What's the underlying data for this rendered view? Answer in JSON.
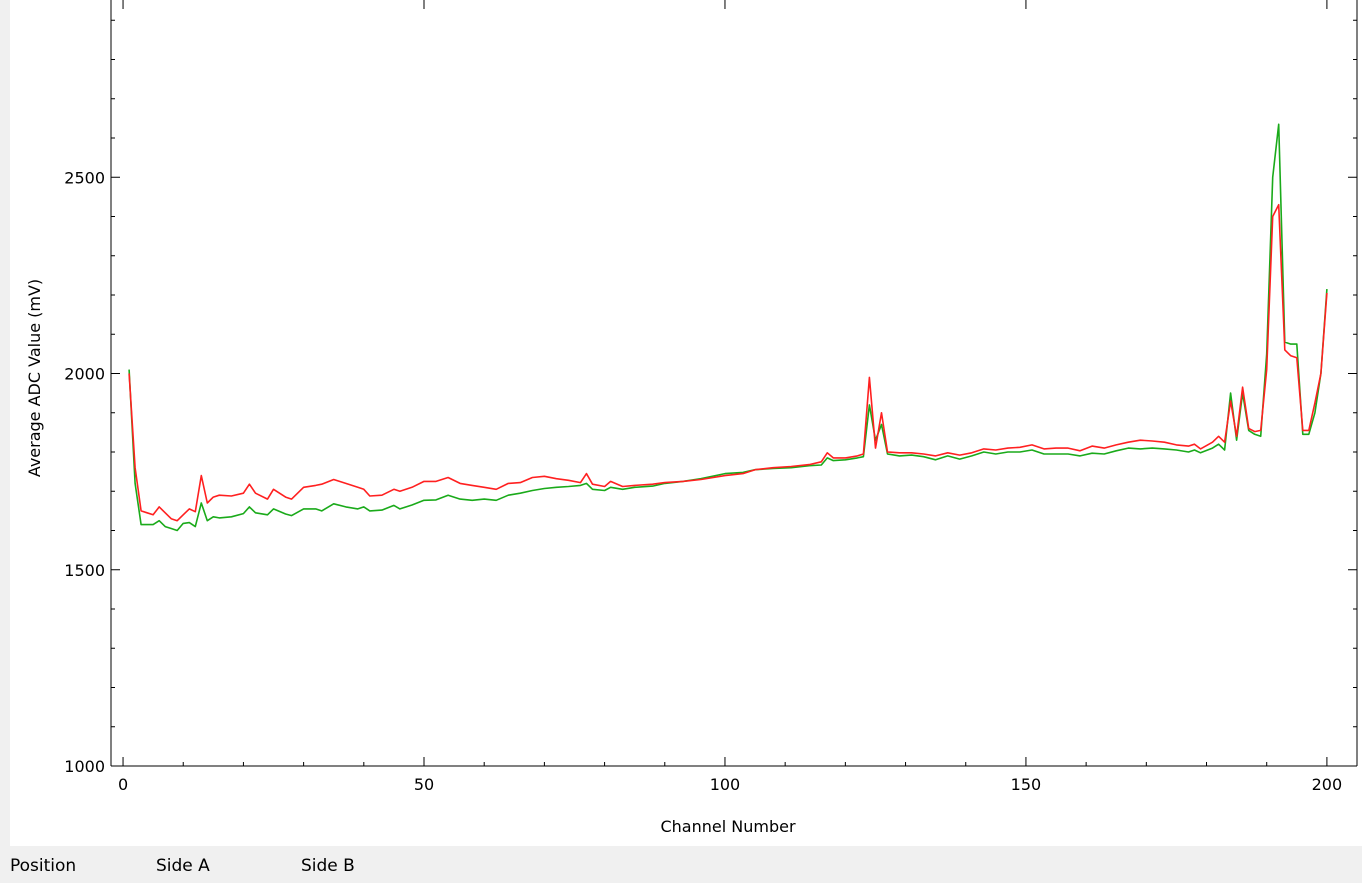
{
  "chart_data": {
    "type": "line",
    "title": "",
    "xlabel": "Channel Number",
    "ylabel": "Average ADC Value (mV)",
    "xlim": [
      -2,
      205
    ],
    "ylim": [
      1000,
      3000
    ],
    "x_ticks": [
      0,
      50,
      100,
      150,
      200
    ],
    "x_tick_labels": [
      "0",
      "50",
      "100",
      "150",
      "200"
    ],
    "y_ticks": [
      1000,
      1500,
      2000,
      2500
    ],
    "y_tick_labels": [
      "1000",
      "1500",
      "2000",
      "2500"
    ],
    "grid": false,
    "legend": "none",
    "series": [
      {
        "color": "#1aaa1a",
        "points": [
          [
            1,
            2010
          ],
          [
            2,
            1720
          ],
          [
            3,
            1615
          ],
          [
            4,
            1615
          ],
          [
            5,
            1615
          ],
          [
            6,
            1625
          ],
          [
            7,
            1610
          ],
          [
            8,
            1605
          ],
          [
            9,
            1600
          ],
          [
            10,
            1618
          ],
          [
            11,
            1620
          ],
          [
            12,
            1610
          ],
          [
            13,
            1670
          ],
          [
            14,
            1625
          ],
          [
            15,
            1635
          ],
          [
            16,
            1632
          ],
          [
            18,
            1635
          ],
          [
            20,
            1643
          ],
          [
            21,
            1660
          ],
          [
            22,
            1645
          ],
          [
            24,
            1640
          ],
          [
            25,
            1655
          ],
          [
            27,
            1642
          ],
          [
            28,
            1638
          ],
          [
            30,
            1655
          ],
          [
            32,
            1655
          ],
          [
            33,
            1650
          ],
          [
            35,
            1668
          ],
          [
            37,
            1660
          ],
          [
            39,
            1655
          ],
          [
            40,
            1660
          ],
          [
            41,
            1650
          ],
          [
            43,
            1652
          ],
          [
            45,
            1664
          ],
          [
            46,
            1655
          ],
          [
            48,
            1665
          ],
          [
            50,
            1677
          ],
          [
            52,
            1678
          ],
          [
            54,
            1690
          ],
          [
            56,
            1680
          ],
          [
            58,
            1677
          ],
          [
            60,
            1680
          ],
          [
            62,
            1677
          ],
          [
            64,
            1690
          ],
          [
            66,
            1695
          ],
          [
            68,
            1702
          ],
          [
            70,
            1707
          ],
          [
            72,
            1710
          ],
          [
            74,
            1712
          ],
          [
            76,
            1715
          ],
          [
            77,
            1720
          ],
          [
            78,
            1705
          ],
          [
            80,
            1702
          ],
          [
            81,
            1710
          ],
          [
            83,
            1705
          ],
          [
            85,
            1710
          ],
          [
            88,
            1713
          ],
          [
            90,
            1720
          ],
          [
            93,
            1725
          ],
          [
            96,
            1732
          ],
          [
            100,
            1745
          ],
          [
            103,
            1748
          ],
          [
            105,
            1755
          ],
          [
            108,
            1758
          ],
          [
            111,
            1760
          ],
          [
            114,
            1765
          ],
          [
            116,
            1767
          ],
          [
            117,
            1785
          ],
          [
            118,
            1778
          ],
          [
            120,
            1780
          ],
          [
            122,
            1785
          ],
          [
            123,
            1788
          ],
          [
            124,
            1920
          ],
          [
            125,
            1830
          ],
          [
            126,
            1870
          ],
          [
            127,
            1795
          ],
          [
            129,
            1790
          ],
          [
            131,
            1792
          ],
          [
            133,
            1788
          ],
          [
            135,
            1780
          ],
          [
            137,
            1790
          ],
          [
            139,
            1782
          ],
          [
            141,
            1790
          ],
          [
            143,
            1800
          ],
          [
            145,
            1795
          ],
          [
            147,
            1800
          ],
          [
            149,
            1800
          ],
          [
            151,
            1805
          ],
          [
            153,
            1795
          ],
          [
            155,
            1795
          ],
          [
            157,
            1795
          ],
          [
            159,
            1790
          ],
          [
            161,
            1797
          ],
          [
            163,
            1795
          ],
          [
            165,
            1803
          ],
          [
            167,
            1810
          ],
          [
            169,
            1808
          ],
          [
            171,
            1810
          ],
          [
            173,
            1808
          ],
          [
            175,
            1805
          ],
          [
            177,
            1800
          ],
          [
            178,
            1805
          ],
          [
            179,
            1798
          ],
          [
            181,
            1810
          ],
          [
            182,
            1820
          ],
          [
            183,
            1805
          ],
          [
            184,
            1950
          ],
          [
            185,
            1830
          ],
          [
            186,
            1950
          ],
          [
            187,
            1855
          ],
          [
            188,
            1845
          ],
          [
            189,
            1840
          ],
          [
            190,
            2050
          ],
          [
            191,
            2500
          ],
          [
            192,
            2635
          ],
          [
            193,
            2080
          ],
          [
            194,
            2075
          ],
          [
            195,
            2075
          ],
          [
            196,
            1845
          ],
          [
            197,
            1845
          ],
          [
            198,
            1900
          ],
          [
            199,
            2000
          ],
          [
            200,
            2215
          ]
        ]
      },
      {
        "color": "#ff2020",
        "points": [
          [
            1,
            2000
          ],
          [
            2,
            1760
          ],
          [
            3,
            1650
          ],
          [
            4,
            1645
          ],
          [
            5,
            1640
          ],
          [
            6,
            1660
          ],
          [
            7,
            1645
          ],
          [
            8,
            1630
          ],
          [
            9,
            1625
          ],
          [
            10,
            1640
          ],
          [
            11,
            1655
          ],
          [
            12,
            1648
          ],
          [
            13,
            1740
          ],
          [
            14,
            1670
          ],
          [
            15,
            1685
          ],
          [
            16,
            1690
          ],
          [
            18,
            1688
          ],
          [
            20,
            1695
          ],
          [
            21,
            1718
          ],
          [
            22,
            1695
          ],
          [
            24,
            1680
          ],
          [
            25,
            1705
          ],
          [
            27,
            1685
          ],
          [
            28,
            1680
          ],
          [
            30,
            1710
          ],
          [
            32,
            1715
          ],
          [
            33,
            1718
          ],
          [
            35,
            1730
          ],
          [
            37,
            1720
          ],
          [
            39,
            1710
          ],
          [
            40,
            1705
          ],
          [
            41,
            1688
          ],
          [
            43,
            1690
          ],
          [
            45,
            1705
          ],
          [
            46,
            1700
          ],
          [
            48,
            1710
          ],
          [
            50,
            1725
          ],
          [
            52,
            1725
          ],
          [
            54,
            1735
          ],
          [
            56,
            1720
          ],
          [
            58,
            1715
          ],
          [
            60,
            1710
          ],
          [
            62,
            1705
          ],
          [
            64,
            1720
          ],
          [
            66,
            1722
          ],
          [
            68,
            1735
          ],
          [
            70,
            1738
          ],
          [
            72,
            1732
          ],
          [
            74,
            1728
          ],
          [
            76,
            1722
          ],
          [
            77,
            1745
          ],
          [
            78,
            1718
          ],
          [
            80,
            1712
          ],
          [
            81,
            1725
          ],
          [
            83,
            1712
          ],
          [
            85,
            1715
          ],
          [
            88,
            1718
          ],
          [
            90,
            1722
          ],
          [
            93,
            1725
          ],
          [
            96,
            1730
          ],
          [
            100,
            1740
          ],
          [
            103,
            1745
          ],
          [
            105,
            1755
          ],
          [
            108,
            1760
          ],
          [
            111,
            1763
          ],
          [
            114,
            1768
          ],
          [
            116,
            1775
          ],
          [
            117,
            1798
          ],
          [
            118,
            1785
          ],
          [
            120,
            1785
          ],
          [
            122,
            1790
          ],
          [
            123,
            1795
          ],
          [
            124,
            1990
          ],
          [
            125,
            1810
          ],
          [
            126,
            1900
          ],
          [
            127,
            1800
          ],
          [
            129,
            1798
          ],
          [
            131,
            1798
          ],
          [
            133,
            1795
          ],
          [
            135,
            1790
          ],
          [
            137,
            1798
          ],
          [
            139,
            1792
          ],
          [
            141,
            1798
          ],
          [
            143,
            1808
          ],
          [
            145,
            1805
          ],
          [
            147,
            1810
          ],
          [
            149,
            1812
          ],
          [
            151,
            1818
          ],
          [
            153,
            1808
          ],
          [
            155,
            1810
          ],
          [
            157,
            1810
          ],
          [
            159,
            1803
          ],
          [
            161,
            1815
          ],
          [
            163,
            1810
          ],
          [
            165,
            1818
          ],
          [
            167,
            1825
          ],
          [
            169,
            1830
          ],
          [
            171,
            1828
          ],
          [
            173,
            1825
          ],
          [
            175,
            1818
          ],
          [
            177,
            1815
          ],
          [
            178,
            1820
          ],
          [
            179,
            1808
          ],
          [
            181,
            1825
          ],
          [
            182,
            1840
          ],
          [
            183,
            1825
          ],
          [
            184,
            1930
          ],
          [
            185,
            1840
          ],
          [
            186,
            1965
          ],
          [
            187,
            1860
          ],
          [
            188,
            1852
          ],
          [
            189,
            1855
          ],
          [
            190,
            2010
          ],
          [
            191,
            2400
          ],
          [
            192,
            2430
          ],
          [
            193,
            2060
          ],
          [
            194,
            2045
          ],
          [
            195,
            2040
          ],
          [
            196,
            1855
          ],
          [
            197,
            1855
          ],
          [
            198,
            1925
          ],
          [
            199,
            2000
          ],
          [
            200,
            2205
          ]
        ]
      }
    ]
  },
  "status_bar": {
    "position_label": "Position",
    "side_a_label": "Side A",
    "side_b_label": "Side B"
  }
}
